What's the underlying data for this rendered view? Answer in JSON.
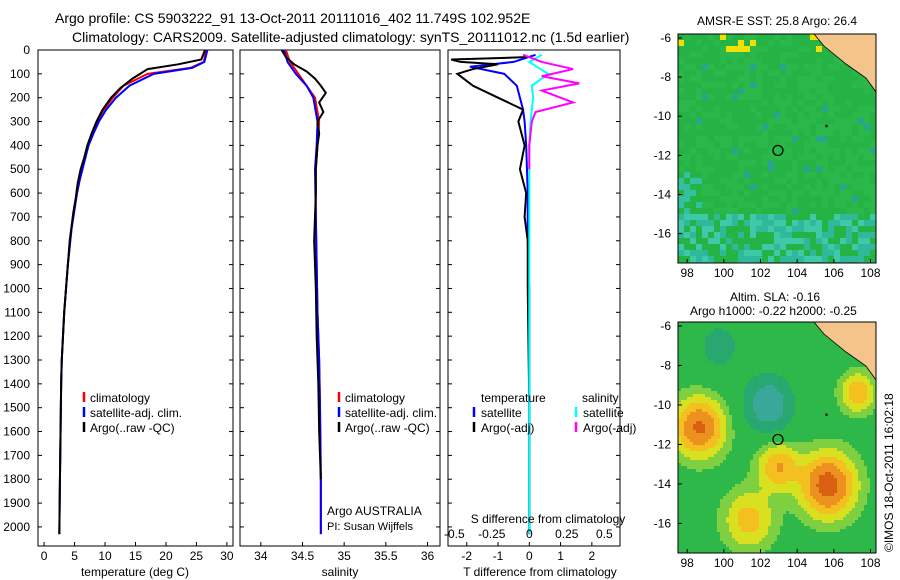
{
  "title_line1": "Argo profile: CS 5903222_91 13-Oct-2011 20111016_402 11.749S 102.952E",
  "title_line2": "Climatology: CARS2009. Satellite-adjusted climatology: synTS_20111012.nc (1.5d earlier)",
  "colors": {
    "climatology": "#ff0000",
    "satellite": "#0000ff",
    "argo": "#000000",
    "salinity_satellite": "#00ffff",
    "salinity_argo": "#ff00ff"
  },
  "watermark": "©IMOS 18-Oct-2011 16:02:18",
  "chart_data": [
    {
      "id": "temperature",
      "type": "line",
      "xlabel": "temperature (deg C)",
      "xlim": [
        -1,
        31
      ],
      "ylim": [
        2080,
        0
      ],
      "xticks": [
        "0",
        "5",
        "10",
        "15",
        "20",
        "25",
        "30"
      ],
      "yticks": [
        "0",
        "100",
        "200",
        "300",
        "400",
        "500",
        "600",
        "700",
        "800",
        "900",
        "1000",
        "1100",
        "1200",
        "1300",
        "1400",
        "1500",
        "1600",
        "1700",
        "1800",
        "1900",
        "2000"
      ],
      "legend": [
        "climatology",
        "satellite-adj. clim.",
        "Argo(..raw -QC)"
      ],
      "series": [
        {
          "name": "climatology",
          "x": [
            26.6,
            26.2,
            24,
            17,
            13,
            11.3,
            9.8,
            8.7,
            7.9,
            7.2,
            6.7,
            6.2,
            5.8,
            5.4,
            5.1,
            4.8,
            4.5,
            4.3,
            3.9,
            3.6,
            3.3,
            3.1,
            2.9,
            2.8,
            2.7,
            2.6,
            2.5
          ],
          "y": [
            0,
            50,
            75,
            100,
            150,
            200,
            250,
            300,
            350,
            400,
            450,
            500,
            550,
            600,
            650,
            700,
            750,
            800,
            900,
            1000,
            1100,
            1200,
            1300,
            1400,
            1600,
            1800,
            2030
          ]
        },
        {
          "name": "satellite-adj. clim.",
          "x": [
            26.8,
            26.3,
            24.3,
            18,
            14,
            11.8,
            10.2,
            9,
            8.1,
            7.3,
            6.8,
            6.3,
            5.8,
            5.4,
            5.1,
            4.8,
            4.5,
            4.3,
            3.9,
            3.6,
            3.3,
            3.1,
            2.9,
            2.8,
            2.7,
            2.6,
            2.5
          ],
          "y": [
            0,
            50,
            75,
            100,
            150,
            200,
            250,
            300,
            350,
            400,
            450,
            500,
            550,
            600,
            650,
            700,
            750,
            800,
            900,
            1000,
            1100,
            1200,
            1300,
            1400,
            1600,
            1800,
            2030
          ]
        },
        {
          "name": "Argo(..raw -QC)",
          "x": [
            26.4,
            25.8,
            22,
            17,
            14.5,
            12.5,
            11,
            9.6,
            8.6,
            7.8,
            7.1,
            6.6,
            6,
            5.5,
            5.2,
            4.8,
            4.5,
            4.2,
            3.9,
            3.6,
            3.3,
            3.1,
            2.9,
            2.8,
            2.7,
            2.6,
            2.5
          ],
          "y": [
            0,
            40,
            60,
            80,
            120,
            160,
            200,
            250,
            300,
            350,
            400,
            450,
            500,
            560,
            620,
            680,
            740,
            800,
            900,
            1000,
            1100,
            1200,
            1300,
            1400,
            1600,
            1800,
            2030
          ]
        }
      ]
    },
    {
      "id": "salinity",
      "type": "line",
      "xlabel": "salinity",
      "xlim": [
        33.75,
        36.15
      ],
      "ylim": [
        2080,
        0
      ],
      "xticks": [
        "34",
        "34.5",
        "35",
        "35.5",
        "36"
      ],
      "legend": [
        "climatology",
        "satellite-adj. clim.",
        "Argo(..raw -QC)"
      ],
      "annotation": [
        "Argo AUSTRALIA",
        "PI: Susan Wijffels"
      ],
      "series": [
        {
          "name": "climatology",
          "x": [
            34.3,
            34.35,
            34.45,
            34.55,
            34.65,
            34.7,
            34.68,
            34.66,
            34.66,
            34.67,
            34.68,
            34.7,
            34.71,
            34.72,
            34.72
          ],
          "y": [
            0,
            50,
            100,
            150,
            200,
            300,
            400,
            500,
            700,
            900,
            1100,
            1300,
            1500,
            1800,
            2030
          ]
        },
        {
          "name": "satellite-adj. clim.",
          "x": [
            34.28,
            34.32,
            34.42,
            34.55,
            34.63,
            34.68,
            34.67,
            34.65,
            34.66,
            34.67,
            34.68,
            34.7,
            34.71,
            34.72,
            34.72
          ],
          "y": [
            0,
            50,
            100,
            150,
            200,
            300,
            400,
            500,
            700,
            900,
            1100,
            1300,
            1500,
            1800,
            2030
          ]
        },
        {
          "name": "Argo(..raw -QC)",
          "x": [
            34.25,
            34.3,
            34.4,
            34.55,
            34.65,
            34.72,
            34.78,
            34.7,
            34.75,
            34.68,
            34.7,
            34.68,
            34.66,
            34.66,
            34.64,
            34.66,
            34.67,
            34.69,
            34.7,
            34.72
          ],
          "y": [
            0,
            30,
            60,
            90,
            120,
            150,
            180,
            220,
            260,
            300,
            350,
            400,
            500,
            600,
            800,
            1000,
            1200,
            1400,
            1600,
            1800
          ]
        }
      ]
    },
    {
      "id": "differences",
      "type": "line",
      "xlabel_bottom": "T difference from climatology",
      "xlabel_top": "S difference from climatology",
      "xlim_T": [
        -2.6,
        2.9
      ],
      "xticks_T": [
        "-2",
        "-1",
        "0",
        "1",
        "2"
      ],
      "xticks_S": [
        "-0.5",
        "-0.25",
        "0",
        "0.25",
        "0.5"
      ],
      "ylim": [
        2080,
        0
      ],
      "legend_left_title": "temperature",
      "legend_right_title": "salinity",
      "legend": [
        "satellite",
        "Argo(-adj)",
        "satellite",
        "Argo(-adj)"
      ],
      "series": [
        {
          "name": "satellite",
          "quantity": "temperature",
          "x": [
            0.2,
            -0.5,
            -1.9,
            -0.8,
            -0.4,
            -0.2,
            -0.15,
            -0.1,
            -0.05,
            -0.05,
            0,
            0,
            0
          ],
          "y": [
            20,
            50,
            70,
            100,
            150,
            250,
            300,
            400,
            600,
            800,
            1000,
            1500,
            2030
          ]
        },
        {
          "name": "Argo(-adj)",
          "quantity": "temperature",
          "x": [
            -0.1,
            -2.5,
            -2.2,
            -1.0,
            -1.8,
            -2.3,
            -1.8,
            -1.0,
            -0.2,
            -0.35,
            -0.15,
            -0.3,
            -0.1,
            -0.15,
            -0.05,
            -0.05,
            0,
            0
          ],
          "y": [
            30,
            40,
            50,
            60,
            80,
            100,
            150,
            200,
            250,
            300,
            400,
            500,
            600,
            700,
            800,
            1000,
            1500,
            2030
          ]
        },
        {
          "name": "satellite",
          "quantity": "salinity",
          "x": [
            0.1,
            0.0,
            0.15,
            0.02,
            0.03,
            0.01,
            0,
            0,
            0,
            0,
            0,
            0
          ],
          "y": [
            20,
            50,
            100,
            150,
            200,
            300,
            400,
            600,
            900,
            1200,
            1600,
            2030
          ]
        },
        {
          "name": "Argo(-adj)",
          "quantity": "salinity",
          "x": [
            -0.05,
            0.1,
            0.35,
            0.1,
            0.4,
            0.1,
            0.35,
            0.05,
            0.02,
            0.01,
            0,
            0
          ],
          "y": [
            20,
            50,
            80,
            110,
            140,
            170,
            220,
            260,
            300,
            350,
            400,
            500
          ]
        }
      ]
    },
    {
      "id": "sst-map",
      "type": "heatmap",
      "title": "AMSR-E SST: 25.8 Argo: 26.4",
      "xticks": [
        "98",
        "100",
        "102",
        "104",
        "106",
        "108"
      ],
      "yticks": [
        "-6",
        "-8",
        "-10",
        "-12",
        "-14",
        "-16"
      ],
      "xlim": [
        97.5,
        108.3
      ],
      "ylim": [
        -17.5,
        -5.8
      ],
      "argo_position": [
        102.952,
        -11.749
      ]
    },
    {
      "id": "sla-map",
      "type": "heatmap",
      "title_line1": "Altim. SLA: -0.16",
      "title_line2": "Argo h1000: -0.22 h2000: -0.25",
      "xticks": [
        "98",
        "100",
        "102",
        "104",
        "106",
        "108"
      ],
      "yticks": [
        "-6",
        "-8",
        "-10",
        "-12",
        "-14",
        "-16"
      ],
      "xlim": [
        97.5,
        108.3
      ],
      "ylim": [
        -17.5,
        -5.8
      ],
      "argo_position": [
        102.952,
        -11.749
      ]
    }
  ]
}
